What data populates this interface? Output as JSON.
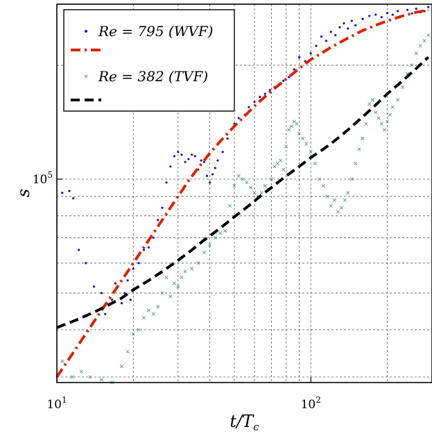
{
  "chart_data": {
    "type": "scatter",
    "title": "",
    "xlabel": "t/Tc",
    "ylabel": "s",
    "xscale": "log",
    "yscale": "log",
    "xlim": [
      10,
      300
    ],
    "ylim": [
      29000,
      290000
    ],
    "grid": true,
    "legend_position": "top-left",
    "x_ticks": [
      {
        "value": 10,
        "base": "10",
        "exp": "1"
      },
      {
        "value": 100,
        "base": "10",
        "exp": "2"
      }
    ],
    "y_ticks": [
      {
        "value": 100000,
        "base": "10",
        "exp": "5"
      }
    ],
    "series": [
      {
        "name": "Re = 795 (WVF)",
        "kind": "points",
        "marker": "dot",
        "color": "#1111dd",
        "x": [
          10.5,
          11.2,
          11.6,
          12.2,
          13.0,
          14.0,
          15.0,
          15.5,
          16.5,
          17.0,
          18.0,
          18.5,
          19.0,
          19.5,
          20.0,
          21.0,
          22.0,
          23.0,
          24.0,
          25.0,
          26.0,
          27.0,
          28.0,
          29.0,
          30.0,
          31.0,
          32.0,
          33.0,
          34.0,
          35.0,
          36.0,
          37.0,
          38.0,
          39.0,
          40.0,
          41.0,
          42.0,
          43.0,
          45.0,
          47.0,
          50.0,
          52.0,
          55.0,
          57.0,
          60.0,
          63.0,
          66.0,
          69.0,
          72.0,
          75.0,
          78.0,
          82.0,
          86.0,
          90.0,
          95.0,
          100.0,
          105.0,
          110.0,
          115.0,
          120.0,
          125.0,
          130.0,
          135.0,
          140.0,
          145.0,
          150.0,
          160.0,
          170.0,
          180.0,
          190.0,
          200.0,
          210.0,
          220.0,
          230.0,
          240.0,
          250.0,
          260.0,
          270.0,
          280.0,
          290.0
        ],
        "y": [
          92000,
          93000,
          89000,
          65000,
          60000,
          52000,
          50000,
          44000,
          48000,
          53000,
          47000,
          50000,
          54000,
          48000,
          58000,
          60000,
          65000,
          66000,
          70000,
          78000,
          84000,
          98000,
          108000,
          115000,
          118000,
          116000,
          111000,
          113000,
          116000,
          115000,
          106000,
          112000,
          111000,
          102000,
          98000,
          103000,
          107000,
          112000,
          118000,
          128000,
          140000,
          145000,
          148000,
          155000,
          160000,
          165000,
          168000,
          172000,
          175000,
          178000,
          182000,
          186000,
          195000,
          210000,
          205000,
          215000,
          225000,
          238000,
          232000,
          245000,
          240000,
          252000,
          258000,
          250000,
          262000,
          255000,
          265000,
          270000,
          272000,
          268000,
          275000,
          272000,
          278000,
          270000,
          280000,
          274000,
          282000,
          276000,
          278000,
          285000
        ]
      },
      {
        "name": "",
        "kind": "line",
        "dash": "dashdot",
        "color": "#dd2200",
        "x": [
          10,
          11,
          12,
          13,
          14,
          15,
          16,
          17,
          18,
          19,
          20,
          22,
          24,
          26,
          28,
          30,
          33,
          36,
          40,
          45,
          50,
          55,
          60,
          70,
          80,
          90,
          100,
          120,
          140,
          160,
          180,
          200,
          230,
          260,
          290
        ],
        "y": [
          30000,
          33000,
          36000,
          39000,
          42000,
          45000,
          48000,
          51000,
          54000,
          57000,
          60000,
          66000,
          72000,
          78000,
          84000,
          90000,
          99000,
          107000,
          117000,
          128000,
          138000,
          147000,
          156000,
          171000,
          184000,
          196000,
          207000,
          223000,
          236000,
          247000,
          255000,
          262000,
          270000,
          276000,
          280000
        ]
      },
      {
        "name": "Re = 382 (TVF)",
        "kind": "points",
        "marker": "x",
        "color": "#4a9a70",
        "x": [
          10.5,
          11.5,
          12.5,
          13.5,
          15.0,
          16.5,
          18.0,
          19.0,
          20.0,
          21.0,
          22.0,
          23.0,
          24.0,
          25.0,
          26.0,
          27.0,
          28.0,
          29.0,
          30.0,
          31.0,
          32.0,
          34.0,
          36.0,
          38.0,
          40.0,
          42.0,
          44.0,
          46.0,
          48.0,
          50.0,
          52.0,
          54.0,
          56.0,
          58.0,
          60.0,
          62.0,
          64.0,
          66.0,
          68.0,
          70.0,
          72.0,
          74.0,
          76.0,
          78.0,
          80.0,
          82.0,
          84.0,
          86.0,
          88.0,
          90.0,
          93.0,
          96.0,
          100.0,
          104.0,
          108.0,
          112.0,
          116.0,
          120.0,
          124.0,
          128.0,
          132.0,
          136.0,
          140.0,
          145.0,
          150.0,
          155.0,
          160.0,
          165.0,
          170.0,
          175.0,
          180.0,
          185.0,
          190.0,
          195.0,
          200.0,
          205.0,
          210.0,
          220.0,
          230.0,
          240.0,
          250.0,
          260.0,
          270.0,
          280.0,
          290.0
        ],
        "y": [
          33000,
          30000,
          31000,
          30000,
          29500,
          29000,
          32000,
          35000,
          39000,
          40000,
          43000,
          45000,
          44000,
          46000,
          50000,
          55000,
          49000,
          53000,
          52000,
          55000,
          57000,
          58000,
          60000,
          64000,
          67000,
          70000,
          72000,
          73000,
          85000,
          96000,
          102000,
          100000,
          98000,
          95000,
          92000,
          90000,
          92000,
          96000,
          94000,
          100000,
          108000,
          110000,
          112000,
          106000,
          122000,
          135000,
          138000,
          142000,
          140000,
          132000,
          128000,
          124000,
          118000,
          110000,
          100000,
          96000,
          90000,
          85000,
          88000,
          82000,
          84000,
          88000,
          92000,
          100000,
          110000,
          120000,
          128000,
          140000,
          158000,
          162000,
          150000,
          145000,
          140000,
          135000,
          142000,
          148000,
          155000,
          162000,
          175000,
          190000,
          200000,
          215000,
          225000,
          232000,
          240000
        ]
      },
      {
        "name": "",
        "kind": "line",
        "dash": "dashed",
        "color": "#000000",
        "x": [
          10,
          12,
          14,
          16,
          18,
          20,
          23,
          26,
          30,
          34,
          38,
          42,
          46,
          50,
          55,
          60,
          65,
          70,
          80,
          90,
          100,
          110,
          120,
          140,
          160,
          180,
          200,
          230,
          260,
          290
        ],
        "y": [
          40500,
          42500,
          44500,
          46500,
          48500,
          51000,
          54000,
          57000,
          61000,
          65000,
          69000,
          72500,
          76000,
          79500,
          83500,
          87500,
          91500,
          95000,
          102000,
          108000,
          114000,
          119000,
          124000,
          135000,
          146000,
          157000,
          168000,
          182000,
          196000,
          210000
        ]
      }
    ]
  }
}
